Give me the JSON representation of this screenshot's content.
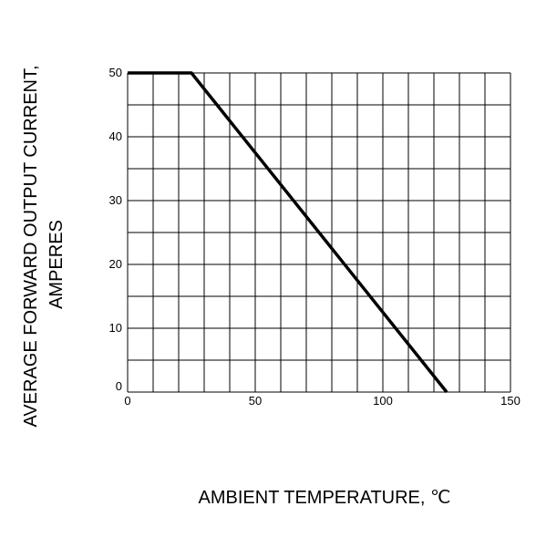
{
  "chart_data": {
    "type": "line",
    "title": "",
    "xlabel": "AMBIENT  TEMPERATURE,  ℃",
    "ylabel_line1": "AVERAGE FORWARD OUTPUT CURRENT,",
    "ylabel_line2": "AMPERES",
    "xlim": [
      0,
      150
    ],
    "ylim": [
      0,
      50
    ],
    "x_ticks": [
      0,
      50,
      100,
      150
    ],
    "y_ticks": [
      0,
      10,
      20,
      30,
      40,
      50
    ],
    "x_tick_labels": [
      "0",
      "50",
      "100",
      "150"
    ],
    "y_tick_labels": [
      "0",
      "10",
      "20",
      "30",
      "40",
      "50"
    ],
    "grid": true,
    "x_minor_step": 10,
    "y_minor_step": 5,
    "series": [
      {
        "x": [
          0,
          25,
          125
        ],
        "y": [
          50,
          50,
          0
        ],
        "color": "#000000"
      }
    ]
  }
}
